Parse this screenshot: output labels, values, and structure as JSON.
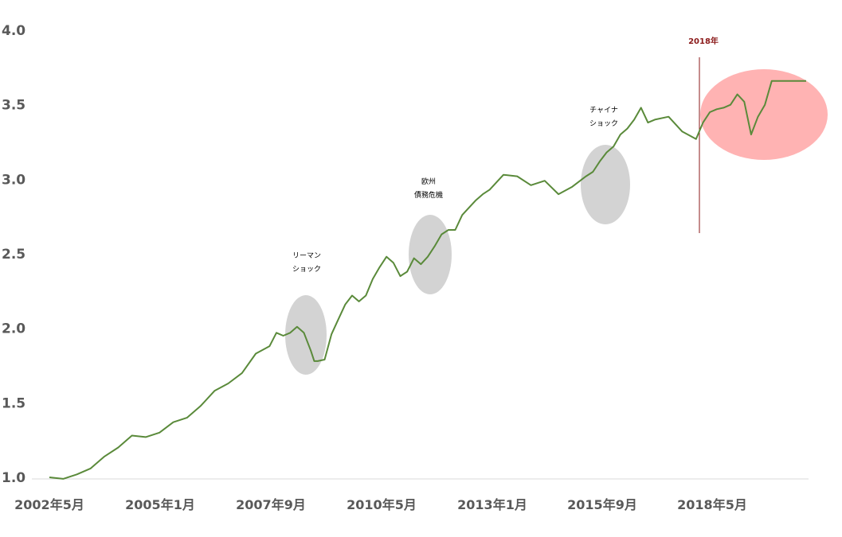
{
  "chart_data": {
    "type": "line",
    "title": "",
    "xlabel": "",
    "ylabel": "",
    "ylim": [
      1.0,
      4.0
    ],
    "yticks": [
      "1.0",
      "1.5",
      "2.0",
      "2.5",
      "3.0",
      "3.5",
      "4.0"
    ],
    "xticks": [
      "2002年5月",
      "2005年1月",
      "2007年9月",
      "2010年5月",
      "2013年1月",
      "2015年9月",
      "2018年5月"
    ],
    "xlim": [
      "2002-05",
      "2020-09"
    ],
    "grid": false,
    "legend": "none",
    "colors": {
      "line": "#5a8a3a",
      "line_highlight": "#8a6a2a",
      "marker": "#8b1a1a",
      "ellipse": "#d3d3d3",
      "highlight_ellipse": "#ffb3b3",
      "axis": "#d9d9d9",
      "tick_text": "#595959"
    },
    "series": [
      {
        "x": [
          "2002-05",
          "2002-09",
          "2003-01",
          "2003-05",
          "2003-09",
          "2004-01",
          "2004-05",
          "2004-09",
          "2005-01",
          "2005-05",
          "2005-09",
          "2006-01",
          "2006-05",
          "2006-09",
          "2007-01",
          "2007-05",
          "2007-09",
          "2007-11",
          "2008-01",
          "2008-03",
          "2008-05",
          "2008-07",
          "2008-09",
          "2008-10",
          "2008-11",
          "2009-01",
          "2009-03",
          "2009-05",
          "2009-07",
          "2009-09",
          "2009-11",
          "2010-01",
          "2010-03",
          "2010-05",
          "2010-07",
          "2010-09",
          "2010-11",
          "2011-01",
          "2011-03",
          "2011-05",
          "2011-07",
          "2011-09",
          "2011-11",
          "2012-01",
          "2012-03",
          "2012-05",
          "2012-07",
          "2012-09",
          "2012-11",
          "2013-01",
          "2013-05",
          "2013-09",
          "2014-01",
          "2014-05",
          "2014-09",
          "2015-01",
          "2015-05",
          "2015-07",
          "2015-09",
          "2015-11",
          "2016-01",
          "2016-03",
          "2016-05",
          "2016-07",
          "2016-09",
          "2016-11",
          "2017-01",
          "2017-05",
          "2017-09",
          "2018-01",
          "2018-03",
          "2018-05",
          "2018-07",
          "2018-09",
          "2018-11",
          "2019-01",
          "2019-03",
          "2019-05",
          "2019-07",
          "2019-09",
          "2019-11",
          "2020-01",
          "2020-03",
          "2020-05",
          "2020-07",
          "2020-09"
        ],
        "values": [
          1.0,
          0.99,
          1.02,
          1.06,
          1.14,
          1.2,
          1.28,
          1.27,
          1.3,
          1.37,
          1.4,
          1.48,
          1.58,
          1.63,
          1.7,
          1.83,
          1.88,
          1.97,
          1.95,
          1.97,
          2.01,
          1.97,
          1.85,
          1.78,
          1.78,
          1.79,
          1.96,
          2.06,
          2.16,
          2.22,
          2.18,
          2.22,
          2.33,
          2.41,
          2.48,
          2.44,
          2.35,
          2.38,
          2.47,
          2.43,
          2.48,
          2.55,
          2.63,
          2.66,
          2.66,
          2.76,
          2.81,
          2.86,
          2.9,
          2.93,
          3.03,
          3.02,
          2.96,
          2.99,
          2.9,
          2.95,
          3.02,
          3.05,
          3.12,
          3.18,
          3.22,
          3.3,
          3.34,
          3.4,
          3.48,
          3.38,
          3.4,
          3.42,
          3.32,
          3.27,
          3.38,
          3.45,
          3.47,
          3.48,
          3.5,
          3.57,
          3.52,
          3.3,
          3.42,
          3.5,
          3.66,
          3.66,
          3.66,
          3.66,
          3.66,
          3.66
        ]
      }
    ],
    "annotations": [
      {
        "lines": [
          "リーマン",
          "ショック"
        ],
        "at": "2008-06"
      },
      {
        "lines": [
          "欧州",
          "債務危機"
        ],
        "at": "2011-02"
      },
      {
        "lines": [
          "チャイナ",
          "ショック"
        ],
        "at": "2015-11"
      }
    ],
    "marker": {
      "label": "2018年",
      "at": "2018-01"
    }
  }
}
